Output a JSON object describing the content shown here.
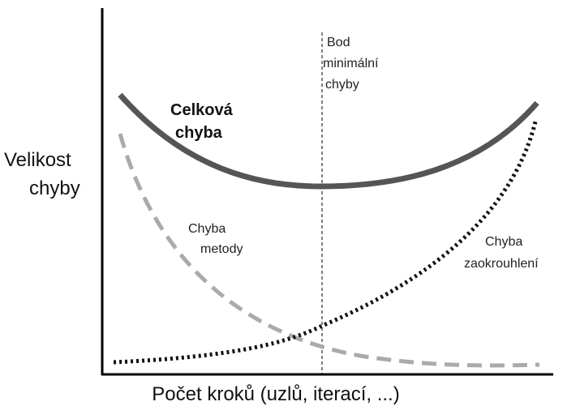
{
  "y_label": [
    "Velikost",
    "chyby"
  ],
  "x_label": "Počet kroků (uzlů, iterací, ...)",
  "total_error": [
    "Celková",
    "chyba"
  ],
  "minimum_point": [
    "Bod",
    "minimální",
    "chyby"
  ],
  "method_error": [
    "Chyba",
    "metody"
  ],
  "rounding_error": [
    "Chyba",
    "zaokrouhlení"
  ]
}
